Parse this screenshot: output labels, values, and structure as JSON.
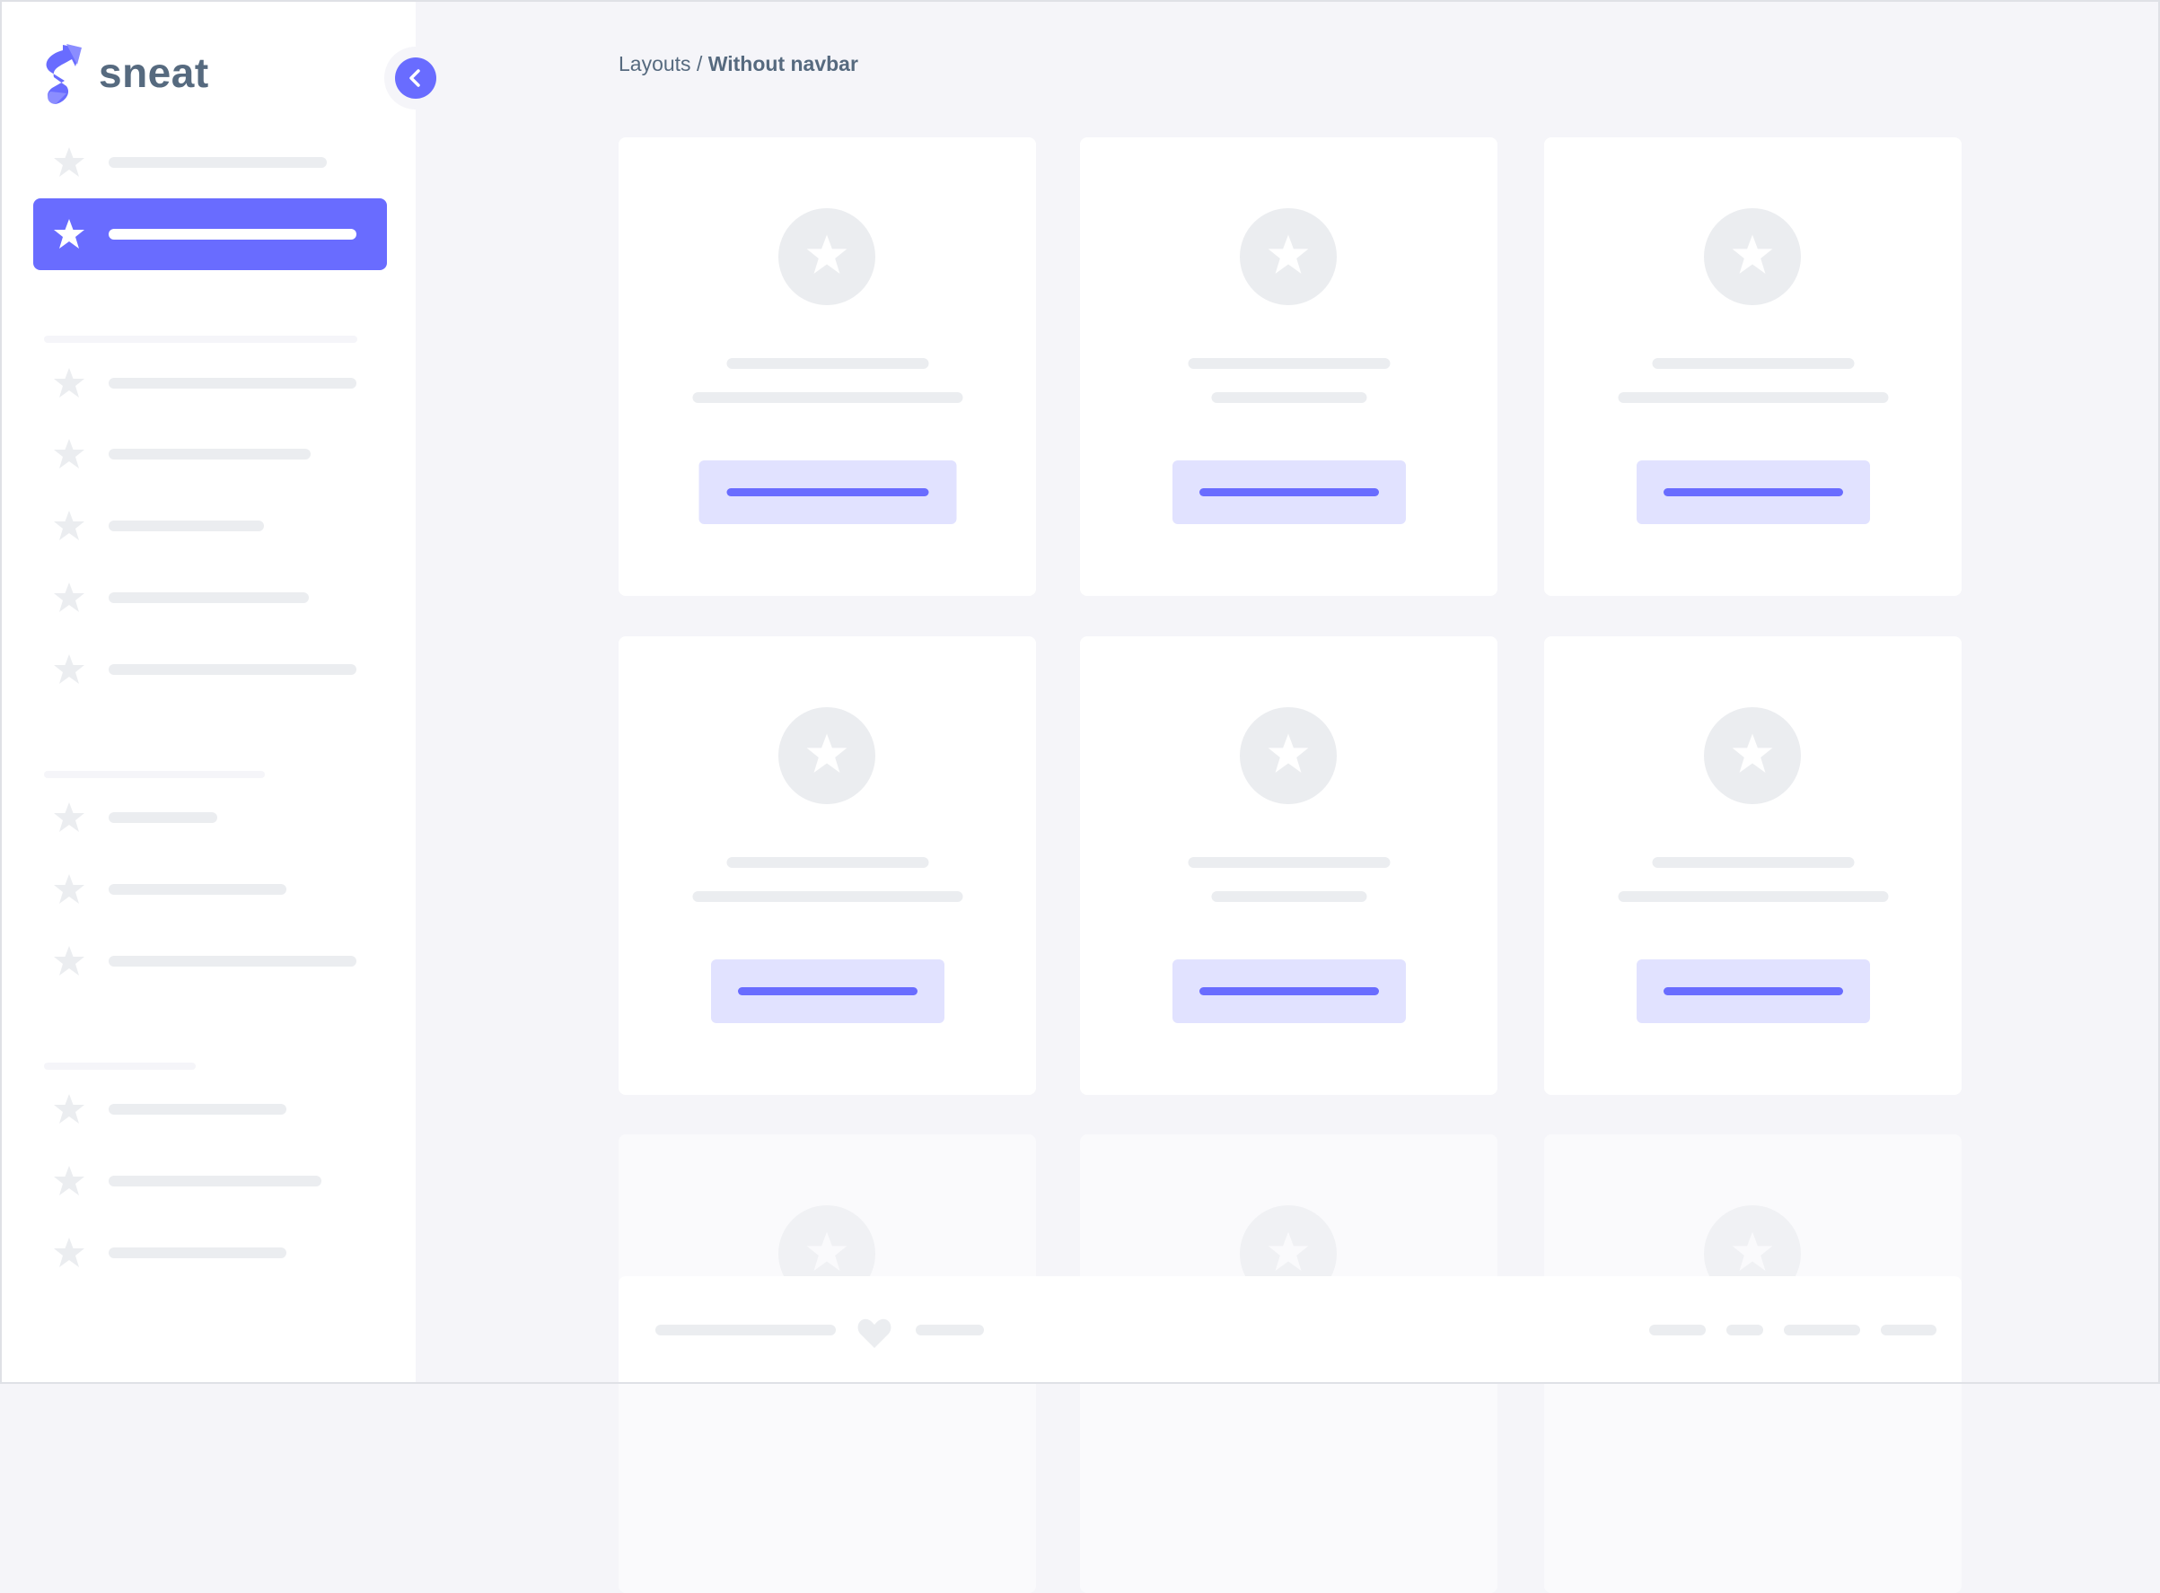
{
  "app": {
    "logo_text": "sneat"
  },
  "breadcrumb": {
    "parent": "Layouts",
    "separator": " / ",
    "current": "Without navbar"
  },
  "sidebar": {
    "toggle_icon": "chevron-left-icon",
    "active_item_index": 1,
    "item_icon": "star-icon"
  },
  "footer": {
    "icon": "heart-icon"
  },
  "colors": {
    "accent": "#696cff",
    "accent_light": "#e1e2ff",
    "background": "#f5f5f9",
    "placeholder": "#ebedf0",
    "text": "#566a7f"
  }
}
